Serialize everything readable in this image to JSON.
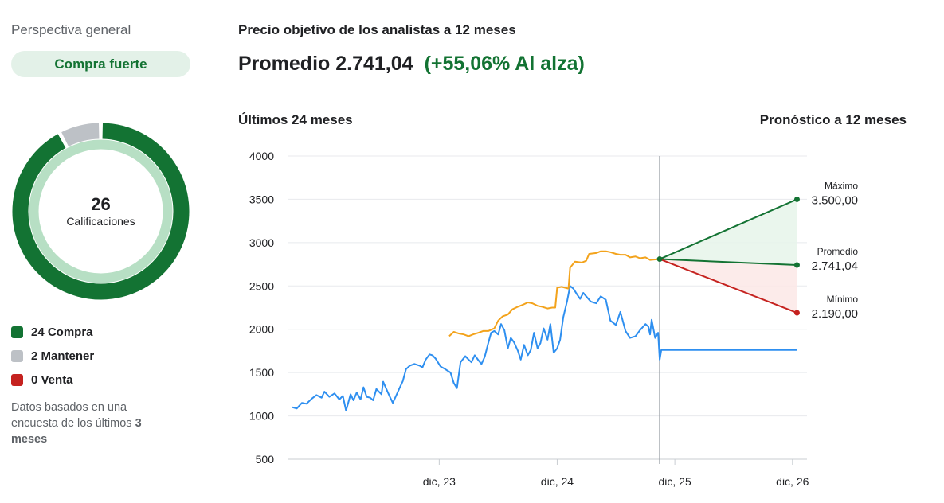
{
  "overview": {
    "title": "Perspectiva general",
    "consensus": "Compra fuerte",
    "total": "26",
    "total_label": "Calificaciones",
    "legend": [
      {
        "label": "24 Compra",
        "value": 24,
        "color": "#137333"
      },
      {
        "label": "2 Mantener",
        "value": 2,
        "color": "#bdc1c6"
      },
      {
        "label": "0 Venta",
        "value": 0,
        "color": "#c5221f"
      }
    ],
    "note_prefix": "Datos basados en una encuesta de los últimos ",
    "note_bold": "3 meses"
  },
  "header": {
    "title": "Precio objetivo de los analistas a 12 meses",
    "average": "Promedio 2.741,04",
    "change": "(+55,06% Al alza)",
    "left_section": "Últimos 24 meses",
    "right_section": "Pronóstico a 12 meses"
  },
  "chart_data": {
    "type": "line",
    "y_ticks": [
      "4000",
      "3500",
      "3000",
      "2500",
      "2000",
      "1500",
      "1000",
      "500"
    ],
    "ylim": [
      500,
      4000
    ],
    "x_ticks": [
      "dic, 23",
      "dic, 24",
      "dic, 25",
      "dic, 26"
    ],
    "series": [
      {
        "color": "#2e8ff0",
        "points": [
          [
            "2022-09-01",
            1100
          ],
          [
            "2022-09-15",
            1085
          ],
          [
            "2022-10-01",
            1150
          ],
          [
            "2022-10-15",
            1140
          ],
          [
            "2022-11-01",
            1200
          ],
          [
            "2022-11-15",
            1240
          ],
          [
            "2022-12-01",
            1210
          ],
          [
            "2022-12-10",
            1280
          ],
          [
            "2022-12-25",
            1220
          ],
          [
            "2023-01-10",
            1260
          ],
          [
            "2023-01-25",
            1190
          ],
          [
            "2023-02-05",
            1230
          ],
          [
            "2023-02-15",
            1060
          ],
          [
            "2023-03-01",
            1250
          ],
          [
            "2023-03-10",
            1180
          ],
          [
            "2023-03-20",
            1270
          ],
          [
            "2023-04-01",
            1190
          ],
          [
            "2023-04-10",
            1330
          ],
          [
            "2023-04-20",
            1220
          ],
          [
            "2023-05-01",
            1210
          ],
          [
            "2023-05-10",
            1180
          ],
          [
            "2023-05-20",
            1310
          ],
          [
            "2023-06-05",
            1250
          ],
          [
            "2023-06-10",
            1395
          ],
          [
            "2023-06-20",
            1310
          ],
          [
            "2023-07-01",
            1220
          ],
          [
            "2023-07-10",
            1150
          ],
          [
            "2023-07-20",
            1230
          ],
          [
            "2023-08-01",
            1330
          ],
          [
            "2023-08-10",
            1400
          ],
          [
            "2023-08-20",
            1540
          ],
          [
            "2023-09-01",
            1580
          ],
          [
            "2023-09-15",
            1600
          ],
          [
            "2023-10-01",
            1580
          ],
          [
            "2023-10-10",
            1560
          ],
          [
            "2023-10-20",
            1650
          ],
          [
            "2023-11-01",
            1710
          ],
          [
            "2023-11-10",
            1700
          ],
          [
            "2023-11-20",
            1660
          ],
          [
            "2023-12-05",
            1570
          ],
          [
            "2023-12-15",
            1550
          ],
          [
            "2024-01-05",
            1500
          ],
          [
            "2024-01-15",
            1380
          ],
          [
            "2024-01-25",
            1320
          ],
          [
            "2024-02-05",
            1620
          ],
          [
            "2024-02-20",
            1690
          ],
          [
            "2024-03-01",
            1650
          ],
          [
            "2024-03-10",
            1620
          ],
          [
            "2024-03-20",
            1700
          ],
          [
            "2024-04-01",
            1640
          ],
          [
            "2024-04-10",
            1600
          ],
          [
            "2024-04-20",
            1680
          ],
          [
            "2024-05-01",
            1840
          ],
          [
            "2024-05-10",
            1960
          ],
          [
            "2024-05-20",
            1980
          ],
          [
            "2024-06-01",
            1940
          ],
          [
            "2024-06-10",
            2060
          ],
          [
            "2024-06-20",
            1990
          ],
          [
            "2024-07-01",
            1780
          ],
          [
            "2024-07-10",
            1900
          ],
          [
            "2024-07-20",
            1850
          ],
          [
            "2024-08-01",
            1750
          ],
          [
            "2024-08-10",
            1650
          ],
          [
            "2024-08-20",
            1820
          ],
          [
            "2024-09-01",
            1700
          ],
          [
            "2024-09-10",
            1760
          ],
          [
            "2024-09-20",
            1960
          ],
          [
            "2024-10-01",
            1780
          ],
          [
            "2024-10-10",
            1840
          ],
          [
            "2024-10-20",
            2010
          ],
          [
            "2024-11-01",
            1880
          ],
          [
            "2024-11-10",
            2060
          ],
          [
            "2024-11-20",
            1730
          ],
          [
            "2024-12-01",
            1780
          ],
          [
            "2024-12-10",
            1880
          ],
          [
            "2024-12-20",
            2140
          ],
          [
            "2025-01-01",
            2330
          ],
          [
            "2025-01-10",
            2500
          ],
          [
            "2025-01-20",
            2470
          ],
          [
            "2025-02-01",
            2400
          ],
          [
            "2025-02-10",
            2350
          ],
          [
            "2025-02-20",
            2420
          ],
          [
            "2025-03-01",
            2380
          ],
          [
            "2025-03-15",
            2320
          ],
          [
            "2025-04-01",
            2300
          ],
          [
            "2025-04-15",
            2380
          ],
          [
            "2025-05-01",
            2340
          ],
          [
            "2025-05-15",
            2100
          ],
          [
            "2025-06-01",
            2050
          ],
          [
            "2025-06-15",
            2200
          ],
          [
            "2025-07-01",
            1980
          ],
          [
            "2025-07-15",
            1900
          ],
          [
            "2025-08-01",
            1920
          ],
          [
            "2025-08-15",
            1990
          ],
          [
            "2025-09-01",
            2060
          ],
          [
            "2025-09-10",
            2030
          ],
          [
            "2025-09-15",
            1940
          ],
          [
            "2025-09-20",
            2110
          ],
          [
            "2025-10-01",
            1900
          ],
          [
            "2025-10-10",
            1960
          ],
          [
            "2025-10-15",
            1650
          ],
          [
            "2025-10-20",
            1760
          ],
          [
            "2026-12-15",
            1760
          ]
        ]
      },
      {
        "color": "#f3a31c",
        "points": [
          [
            "2024-01-01",
            1920
          ],
          [
            "2024-01-15",
            1970
          ],
          [
            "2024-02-01",
            1950
          ],
          [
            "2024-02-15",
            1940
          ],
          [
            "2024-03-01",
            1920
          ],
          [
            "2024-03-15",
            1940
          ],
          [
            "2024-04-01",
            1960
          ],
          [
            "2024-04-15",
            1980
          ],
          [
            "2024-05-01",
            1980
          ],
          [
            "2024-05-20",
            2010
          ],
          [
            "2024-06-01",
            2100
          ],
          [
            "2024-06-15",
            2150
          ],
          [
            "2024-07-01",
            2170
          ],
          [
            "2024-07-15",
            2230
          ],
          [
            "2024-08-01",
            2260
          ],
          [
            "2024-08-15",
            2280
          ],
          [
            "2024-09-01",
            2310
          ],
          [
            "2024-09-15",
            2300
          ],
          [
            "2024-10-01",
            2270
          ],
          [
            "2024-10-15",
            2260
          ],
          [
            "2024-11-01",
            2240
          ],
          [
            "2024-11-15",
            2250
          ],
          [
            "2024-11-25",
            2250
          ],
          [
            "2024-12-01",
            2480
          ],
          [
            "2024-12-15",
            2490
          ],
          [
            "2025-01-05",
            2470
          ],
          [
            "2025-01-10",
            2710
          ],
          [
            "2025-01-25",
            2780
          ],
          [
            "2025-02-15",
            2770
          ],
          [
            "2025-03-01",
            2790
          ],
          [
            "2025-03-10",
            2870
          ],
          [
            "2025-04-01",
            2880
          ],
          [
            "2025-04-15",
            2900
          ],
          [
            "2025-05-01",
            2900
          ],
          [
            "2025-05-15",
            2890
          ],
          [
            "2025-06-01",
            2870
          ],
          [
            "2025-06-15",
            2860
          ],
          [
            "2025-07-01",
            2860
          ],
          [
            "2025-07-15",
            2830
          ],
          [
            "2025-08-01",
            2840
          ],
          [
            "2025-08-15",
            2820
          ],
          [
            "2025-09-01",
            2830
          ],
          [
            "2025-09-15",
            2800
          ],
          [
            "2025-10-15",
            2810
          ]
        ]
      }
    ],
    "forecast": {
      "start_date": "2025-10-15",
      "end_date": "2026-12-15",
      "start_value": 2810,
      "high": {
        "label": "Máximo",
        "value": 3500,
        "value_text": "3.500,00",
        "color": "#137333"
      },
      "average": {
        "label": "Promedio",
        "value": 2741.04,
        "value_text": "2.741,04",
        "color": "#137333"
      },
      "low": {
        "label": "Mínimo",
        "value": 2190,
        "value_text": "2.190,00",
        "color": "#c5221f"
      }
    }
  }
}
